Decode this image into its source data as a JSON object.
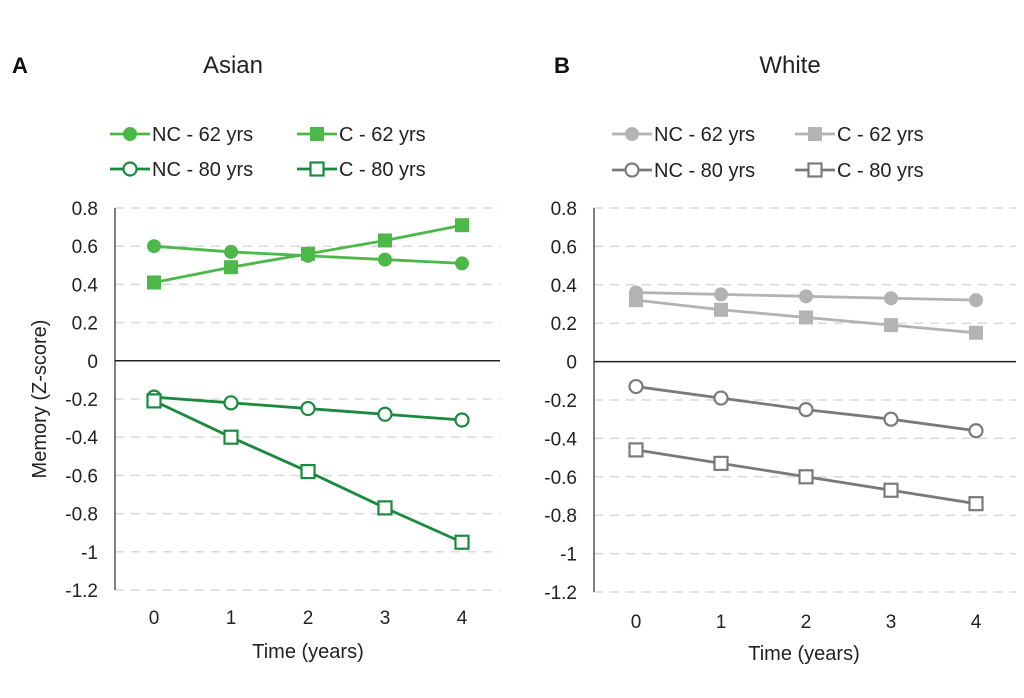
{
  "chart_data": [
    {
      "panel_letter": "A",
      "type": "line",
      "title": "Asian",
      "xlabel": "Time (years)",
      "ylabel": "Memory (Z-score)",
      "x": [
        0,
        1,
        2,
        3,
        4
      ],
      "xticks": [
        "0",
        "1",
        "2",
        "3",
        "4"
      ],
      "ylim": [
        -1.2,
        0.8
      ],
      "yticks": [
        "0.8",
        "0.6",
        "0.4",
        "0.2",
        "0",
        "-0.2",
        "-0.4",
        "-0.6",
        "-0.8",
        "-1",
        "-1.2"
      ],
      "grid": "horizontal dashed",
      "legend_position": "top",
      "series": [
        {
          "name": "NC - 62 yrs",
          "values": [
            0.6,
            0.57,
            0.55,
            0.53,
            0.51
          ],
          "color": "#4cb849",
          "marker": "circle-filled"
        },
        {
          "name": "C - 62 yrs",
          "values": [
            0.41,
            0.49,
            0.56,
            0.63,
            0.71
          ],
          "color": "#4cb849",
          "marker": "square-filled"
        },
        {
          "name": "NC - 80 yrs",
          "values": [
            -0.19,
            -0.22,
            -0.25,
            -0.28,
            -0.31
          ],
          "color": "#1a8a3e",
          "marker": "circle-open"
        },
        {
          "name": "C - 80 yrs",
          "values": [
            -0.21,
            -0.4,
            -0.58,
            -0.77,
            -0.95
          ],
          "color": "#1a8a3e",
          "marker": "square-open"
        }
      ]
    },
    {
      "panel_letter": "B",
      "type": "line",
      "title": "White",
      "xlabel": "Time (years)",
      "ylabel": "",
      "x": [
        0,
        1,
        2,
        3,
        4
      ],
      "xticks": [
        "0",
        "1",
        "2",
        "3",
        "4"
      ],
      "ylim": [
        -1.2,
        0.8
      ],
      "yticks": [
        "0.8",
        "0.6",
        "0.4",
        "0.2",
        "0",
        "-0.2",
        "-0.4",
        "-0.6",
        "-0.8",
        "-1",
        "-1.2"
      ],
      "grid": "horizontal dashed",
      "legend_position": "top",
      "series": [
        {
          "name": "NC - 62 yrs",
          "values": [
            0.36,
            0.35,
            0.34,
            0.33,
            0.32
          ],
          "color": "#b3b3b3",
          "marker": "circle-filled"
        },
        {
          "name": "C - 62 yrs",
          "values": [
            0.32,
            0.27,
            0.23,
            0.19,
            0.15
          ],
          "color": "#b3b3b3",
          "marker": "square-filled"
        },
        {
          "name": "NC - 80 yrs",
          "values": [
            -0.13,
            -0.19,
            -0.25,
            -0.3,
            -0.36
          ],
          "color": "#7a7a7a",
          "marker": "circle-open"
        },
        {
          "name": "C - 80 yrs",
          "values": [
            -0.46,
            -0.53,
            -0.6,
            -0.67,
            -0.74
          ],
          "color": "#7a7a7a",
          "marker": "square-open"
        }
      ]
    }
  ]
}
